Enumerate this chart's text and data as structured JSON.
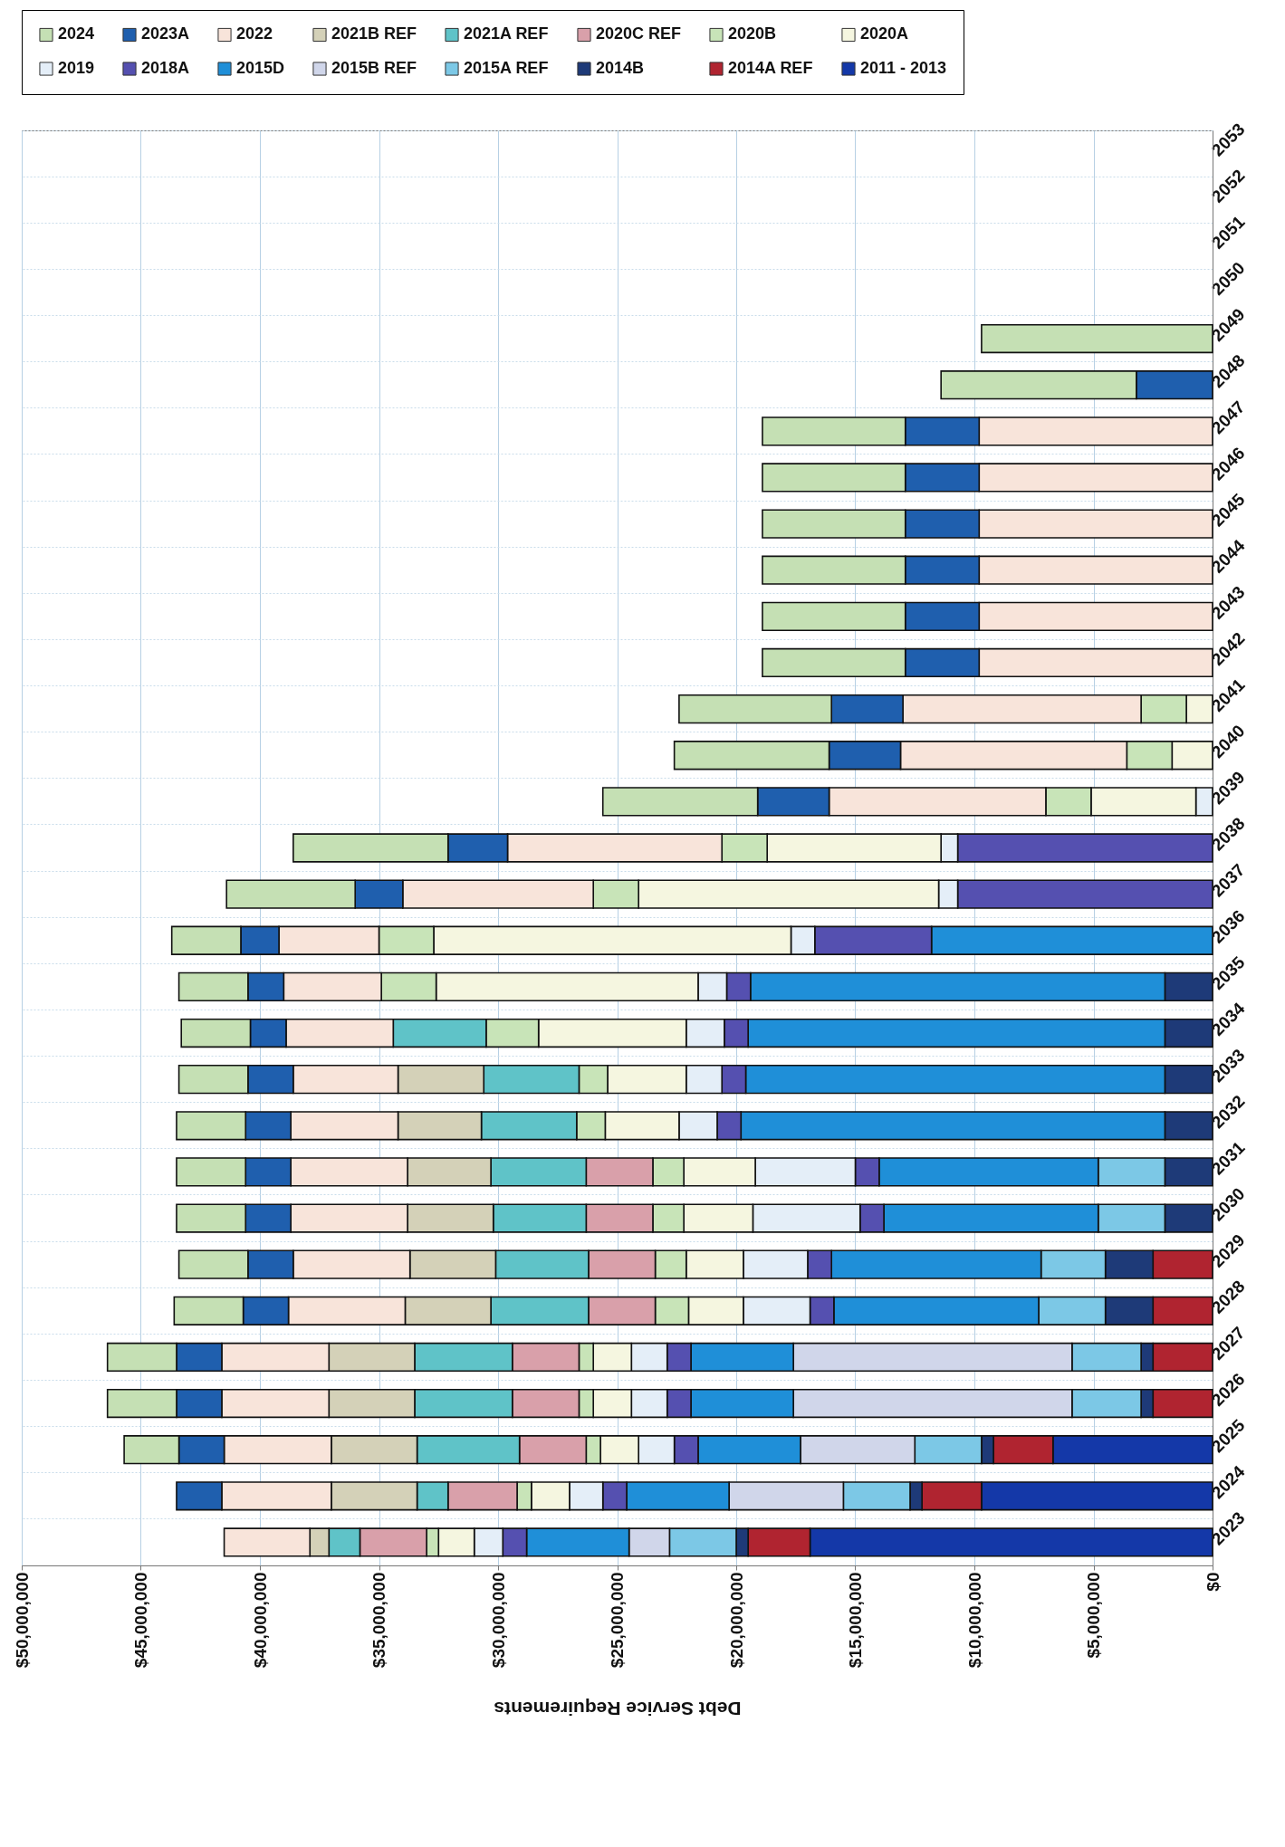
{
  "chart_data": {
    "type": "bar",
    "stacked": true,
    "orientation": "horizontal",
    "xlabel": "Debt Service Requirements",
    "categories": [
      "2053",
      "2052",
      "2051",
      "2050",
      "2049",
      "2048",
      "2047",
      "2046",
      "2045",
      "2044",
      "2043",
      "2042",
      "2041",
      "2040",
      "2039",
      "2038",
      "2037",
      "2036",
      "2035",
      "2034",
      "2033",
      "2032",
      "2031",
      "2030",
      "2029",
      "2028",
      "2027",
      "2026",
      "2025",
      "2024",
      "2023"
    ],
    "xlim": [
      50000000,
      0
    ],
    "xticks": [
      {
        "value": 50000000,
        "label": "$50,000,000"
      },
      {
        "value": 45000000,
        "label": "$45,000,000"
      },
      {
        "value": 40000000,
        "label": "$40,000,000"
      },
      {
        "value": 35000000,
        "label": "$35,000,000"
      },
      {
        "value": 30000000,
        "label": "$30,000,000"
      },
      {
        "value": 25000000,
        "label": "$25,000,000"
      },
      {
        "value": 20000000,
        "label": "$20,000,000"
      },
      {
        "value": 15000000,
        "label": "$15,000,000"
      },
      {
        "value": 10000000,
        "label": "$10,000,000"
      },
      {
        "value": 5000000,
        "label": "$5,000,000"
      },
      {
        "value": 0,
        "label": "$0"
      }
    ],
    "grid": true,
    "legend": "top",
    "series": [
      {
        "name": "2011 - 2013",
        "color": "#1438a8",
        "values": [
          null,
          null,
          null,
          null,
          null,
          null,
          null,
          null,
          null,
          null,
          null,
          null,
          null,
          null,
          null,
          null,
          null,
          null,
          null,
          null,
          null,
          null,
          null,
          null,
          null,
          null,
          null,
          null,
          6700000,
          9700000,
          16900000
        ]
      },
      {
        "name": "2014A REF",
        "color": "#b02430",
        "values": [
          null,
          null,
          null,
          null,
          null,
          null,
          null,
          null,
          null,
          null,
          null,
          null,
          null,
          null,
          null,
          null,
          null,
          null,
          null,
          null,
          null,
          null,
          null,
          null,
          2500000,
          2500000,
          2500000,
          2500000,
          2500000,
          2500000,
          2600000
        ]
      },
      {
        "name": "2014B",
        "color": "#1e3a78",
        "values": [
          null,
          null,
          null,
          null,
          null,
          null,
          null,
          null,
          null,
          null,
          null,
          null,
          null,
          null,
          null,
          null,
          null,
          null,
          2000000,
          2000000,
          2000000,
          2000000,
          2000000,
          2000000,
          2000000,
          2000000,
          500000,
          500000,
          500000,
          500000,
          500000
        ]
      },
      {
        "name": "2015A REF",
        "color": "#7cc8e6",
        "values": [
          null,
          null,
          null,
          null,
          null,
          null,
          null,
          null,
          null,
          null,
          null,
          null,
          null,
          null,
          null,
          null,
          null,
          null,
          null,
          null,
          null,
          null,
          2800000,
          2800000,
          2700000,
          2800000,
          2900000,
          2900000,
          2800000,
          2800000,
          2800000
        ]
      },
      {
        "name": "2015B REF",
        "color": "#d0d6ea",
        "values": [
          null,
          null,
          null,
          null,
          null,
          null,
          null,
          null,
          null,
          null,
          null,
          null,
          null,
          null,
          null,
          null,
          null,
          null,
          null,
          null,
          null,
          null,
          null,
          null,
          null,
          null,
          11700000,
          11700000,
          4800000,
          4800000,
          1700000
        ]
      },
      {
        "name": "2015D",
        "color": "#1f8fd8",
        "values": [
          null,
          null,
          null,
          null,
          null,
          null,
          null,
          null,
          null,
          null,
          null,
          null,
          null,
          null,
          null,
          null,
          null,
          11800000,
          17400000,
          17500000,
          17600000,
          17800000,
          9200000,
          9000000,
          8800000,
          8600000,
          4300000,
          4300000,
          4300000,
          4300000,
          4300000
        ]
      },
      {
        "name": "2018A",
        "color": "#5550b0",
        "values": [
          null,
          null,
          null,
          null,
          null,
          null,
          null,
          null,
          null,
          null,
          null,
          null,
          null,
          null,
          null,
          10700000,
          10700000,
          4900000,
          1000000,
          1000000,
          1000000,
          1000000,
          1000000,
          1000000,
          1000000,
          1000000,
          1000000,
          1000000,
          1000000,
          1000000,
          1000000
        ]
      },
      {
        "name": "2019",
        "color": "#e4eef8",
        "values": [
          null,
          null,
          null,
          null,
          null,
          null,
          null,
          null,
          null,
          null,
          null,
          null,
          null,
          null,
          700000,
          700000,
          800000,
          1000000,
          1200000,
          1600000,
          1500000,
          1600000,
          4200000,
          4500000,
          2700000,
          2800000,
          1500000,
          1500000,
          1500000,
          1400000,
          1200000
        ]
      },
      {
        "name": "2020A",
        "color": "#f5f6e0",
        "values": [
          null,
          null,
          null,
          null,
          null,
          null,
          null,
          null,
          null,
          null,
          null,
          null,
          1100000,
          1700000,
          4400000,
          7300000,
          12600000,
          15000000,
          11000000,
          6200000,
          3300000,
          3100000,
          3000000,
          2900000,
          2400000,
          2300000,
          1600000,
          1600000,
          1600000,
          1600000,
          1500000
        ]
      },
      {
        "name": "2020B",
        "color": "#c8e4b8",
        "values": [
          null,
          null,
          null,
          null,
          null,
          null,
          null,
          null,
          null,
          null,
          null,
          null,
          1900000,
          1900000,
          1900000,
          1900000,
          1900000,
          2300000,
          2300000,
          2200000,
          1200000,
          1200000,
          1300000,
          1300000,
          1300000,
          1400000,
          600000,
          600000,
          600000,
          600000,
          500000
        ]
      },
      {
        "name": "2020C REF",
        "color": "#d9a0aa",
        "values": [
          null,
          null,
          null,
          null,
          null,
          null,
          null,
          null,
          null,
          null,
          null,
          null,
          null,
          null,
          null,
          null,
          null,
          null,
          null,
          null,
          null,
          null,
          2800000,
          2800000,
          2800000,
          2800000,
          2800000,
          2800000,
          2800000,
          2900000,
          2800000
        ]
      },
      {
        "name": "2021A REF",
        "color": "#5fc3c8",
        "values": [
          null,
          null,
          null,
          null,
          null,
          null,
          null,
          null,
          null,
          null,
          null,
          null,
          null,
          null,
          null,
          null,
          null,
          null,
          null,
          3900000,
          4000000,
          4000000,
          4000000,
          3900000,
          3900000,
          4100000,
          4100000,
          4100000,
          4300000,
          1300000,
          1300000
        ]
      },
      {
        "name": "2021B REF",
        "color": "#d4d1b8",
        "values": [
          null,
          null,
          null,
          null,
          null,
          null,
          null,
          null,
          null,
          null,
          null,
          null,
          null,
          null,
          null,
          null,
          null,
          null,
          null,
          null,
          3600000,
          3500000,
          3500000,
          3600000,
          3600000,
          3600000,
          3600000,
          3600000,
          3600000,
          3600000,
          800000
        ]
      },
      {
        "name": "2022",
        "color": "#f8e4da",
        "values": [
          null,
          null,
          null,
          null,
          null,
          null,
          9800000,
          9800000,
          9800000,
          9800000,
          9800000,
          9800000,
          10000000,
          9500000,
          9100000,
          9000000,
          8000000,
          4200000,
          4100000,
          4500000,
          4400000,
          4500000,
          4900000,
          4900000,
          4900000,
          4900000,
          4500000,
          4500000,
          4500000,
          4600000,
          3600000
        ]
      },
      {
        "name": "2023A",
        "color": "#1f5fae",
        "values": [
          null,
          null,
          null,
          null,
          null,
          3200000,
          3100000,
          3100000,
          3100000,
          3100000,
          3100000,
          3100000,
          3000000,
          3000000,
          3000000,
          2500000,
          2000000,
          1600000,
          1500000,
          1500000,
          1900000,
          1900000,
          1900000,
          1900000,
          1900000,
          1900000,
          1900000,
          1900000,
          1900000,
          1900000,
          null
        ]
      },
      {
        "name": "2024",
        "color": "#c5e0b4",
        "values": [
          null,
          null,
          null,
          null,
          9700000,
          8200000,
          6000000,
          6000000,
          6000000,
          6000000,
          6000000,
          6000000,
          6400000,
          6500000,
          6500000,
          6500000,
          5400000,
          2900000,
          2900000,
          2900000,
          2900000,
          2900000,
          2900000,
          2900000,
          2900000,
          2900000,
          2900000,
          2900000,
          2300000,
          null,
          null
        ]
      }
    ]
  }
}
